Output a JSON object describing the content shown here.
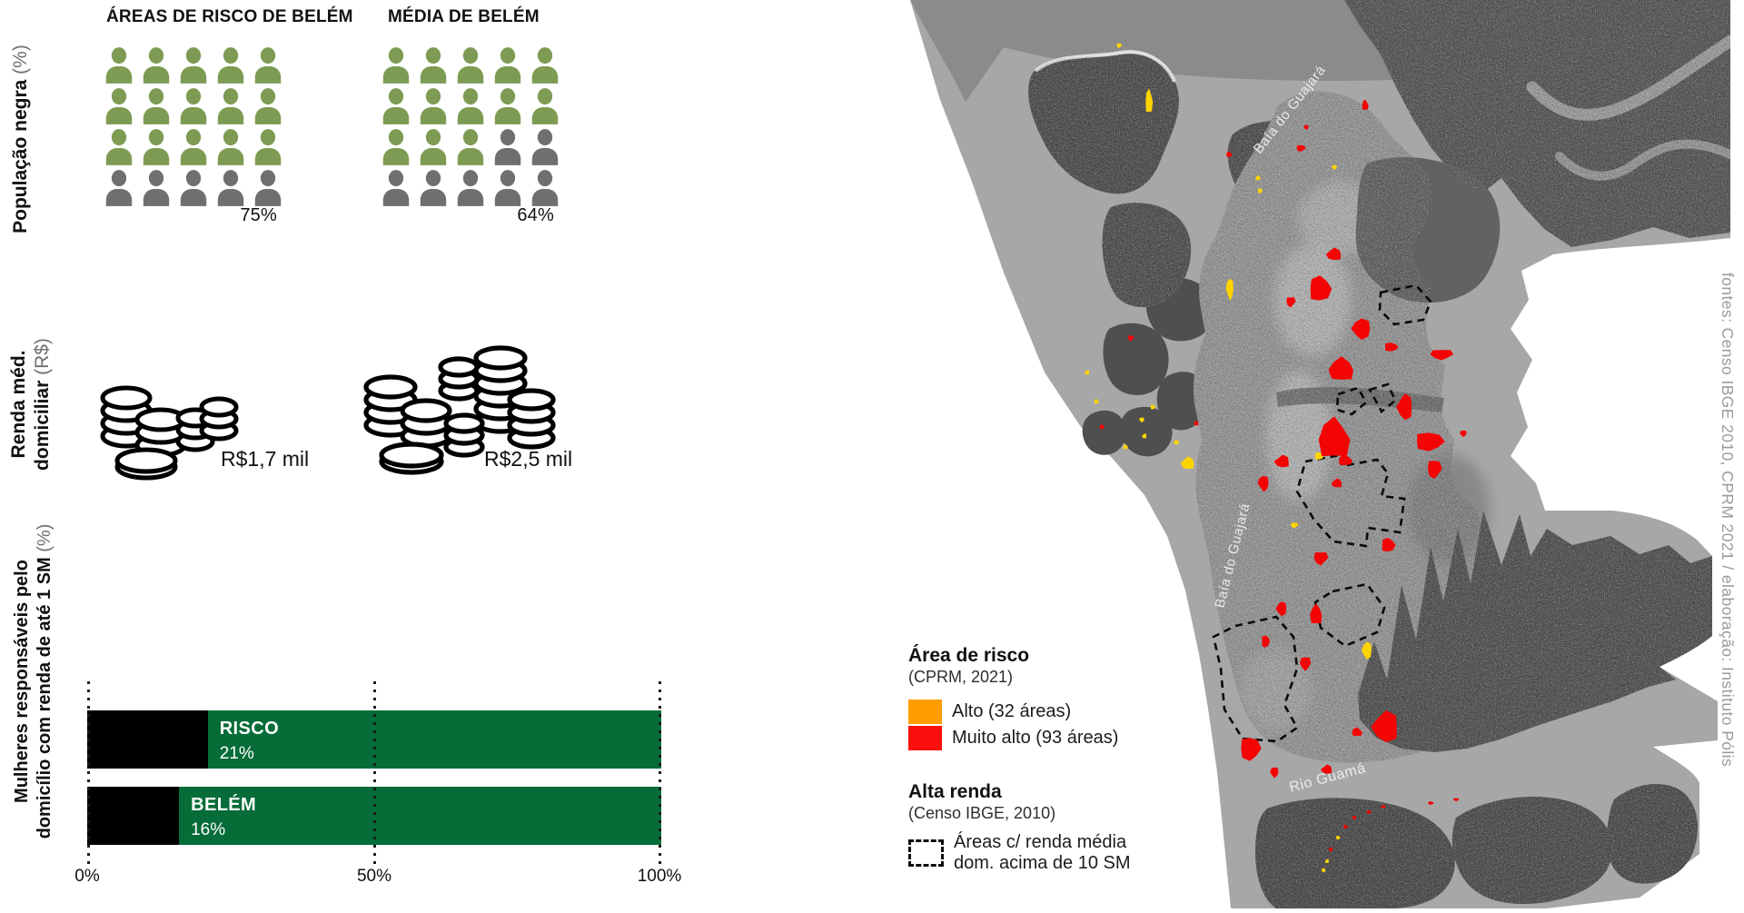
{
  "headers": {
    "col_risk": "ÁREAS DE RISCO DE BELÉM",
    "col_avg": "MÉDIA DE BELÉM"
  },
  "row_labels": {
    "population": {
      "bold": "População negra",
      "unit": "(%)"
    },
    "income": {
      "line1": "Renda méd.",
      "line2": "domiciliar",
      "unit": "(R$)"
    },
    "women": {
      "line1": "Mulheres responsáveis pelo",
      "line2": "domicílio com renda de até 1 SM",
      "unit": "(%)"
    }
  },
  "chart_data": [
    {
      "type": "pictogram",
      "title": "População negra (%)",
      "columns": 5,
      "rows": 4,
      "icons_total": 20,
      "series": [
        {
          "name": "ÁREAS DE RISCO DE BELÉM",
          "value": 75,
          "label": "75%",
          "filled_icons": 15
        },
        {
          "name": "MÉDIA DE BELÉM",
          "value": 64,
          "label": "64%",
          "filled_icons": 13
        }
      ],
      "filled_color": "#7d9b52",
      "empty_color": "#6f6f6f"
    },
    {
      "type": "icon-value",
      "title": "Renda méd. domiciliar (R$)",
      "series": [
        {
          "name": "ÁREAS DE RISCO DE BELÉM",
          "label": "R$1,7 mil",
          "value_mil_reais": 1.7
        },
        {
          "name": "MÉDIA DE BELÉM",
          "label": "R$2,5 mil",
          "value_mil_reais": 2.5
        }
      ]
    },
    {
      "type": "bar",
      "title": "Mulheres responsáveis pelo domicílio com renda de até 1 SM (%)",
      "categories": [
        "RISCO",
        "BELÉM"
      ],
      "values": [
        21,
        16
      ],
      "value_labels": [
        "21%",
        "16%"
      ],
      "xlim": [
        0,
        100
      ],
      "ticks": [
        "0%",
        "50%",
        "100%"
      ],
      "grid": "dotted",
      "bar_color": "#066c38",
      "segment_color": "#000000"
    }
  ],
  "map": {
    "labels": [
      {
        "text": "Baía do Guajará"
      },
      {
        "text": "Baía do Guajará"
      },
      {
        "text": "Rio Guamá"
      }
    ],
    "legend": {
      "risk_title": "Área de risco",
      "risk_source": "(CPRM, 2021)",
      "items": [
        {
          "label": "Alto (32 áreas)",
          "color": "#ff9d00"
        },
        {
          "label": "Muito alto (93 áreas)",
          "color": "#fb0f0c"
        }
      ],
      "income_title": "Alta renda",
      "income_source": "(Censo IBGE, 2010)",
      "income_item_line1": "Áreas c/ renda média",
      "income_item_line2": "dom. acima de 10 SM"
    },
    "risk_mark_colors": {
      "map_high": "#ffd400",
      "map_very_high": "#f30505"
    }
  },
  "source_note": "fontes: Censo IBGE 2010, CPRM 2021 / elaboração: Instituto Pólis"
}
